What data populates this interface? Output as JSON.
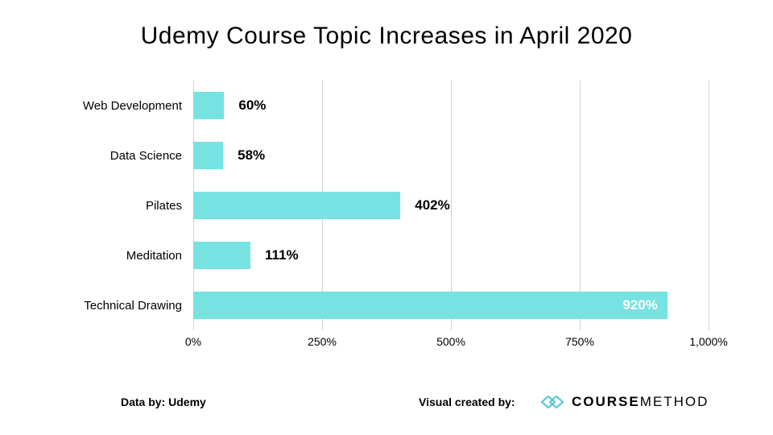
{
  "title": "Udemy Course Topic  Increases in April 2020",
  "chart": {
    "type": "bar-horizontal",
    "background_color": "#ffffff",
    "bar_color": "#76e2e2",
    "grid_color": "#cfd4d8",
    "label_color": "#000000",
    "value_label_color_outside": "#000000",
    "value_label_color_inside": "#ffffff",
    "title_fontsize": 30,
    "category_fontsize": 15,
    "value_fontsize": 17,
    "tick_fontsize": 14,
    "xlim": [
      0,
      1000
    ],
    "xtick_step": 250,
    "xticks": [
      {
        "v": 0,
        "label": "0%"
      },
      {
        "v": 250,
        "label": "250%"
      },
      {
        "v": 500,
        "label": "500%"
      },
      {
        "v": 750,
        "label": "750%"
      },
      {
        "v": 1000,
        "label": "1,000%"
      }
    ],
    "rows": [
      {
        "category": "Web Development",
        "value": 60,
        "label": "60%",
        "label_inside": false
      },
      {
        "category": "Data Science",
        "value": 58,
        "label": "58%",
        "label_inside": false
      },
      {
        "category": "Pilates",
        "value": 402,
        "label": "402%",
        "label_inside": false
      },
      {
        "category": "Meditation",
        "value": 111,
        "label": "111%",
        "label_inside": false
      },
      {
        "category": "Technical Drawing",
        "value": 920,
        "label": "920%",
        "label_inside": true
      }
    ]
  },
  "footer": {
    "source_label": "Data by: Udemy",
    "credit_label": "Visual created by:",
    "brand_bold": "COURSE",
    "brand_light": "METHOD",
    "brand_icon_color": "#5bcad6"
  }
}
